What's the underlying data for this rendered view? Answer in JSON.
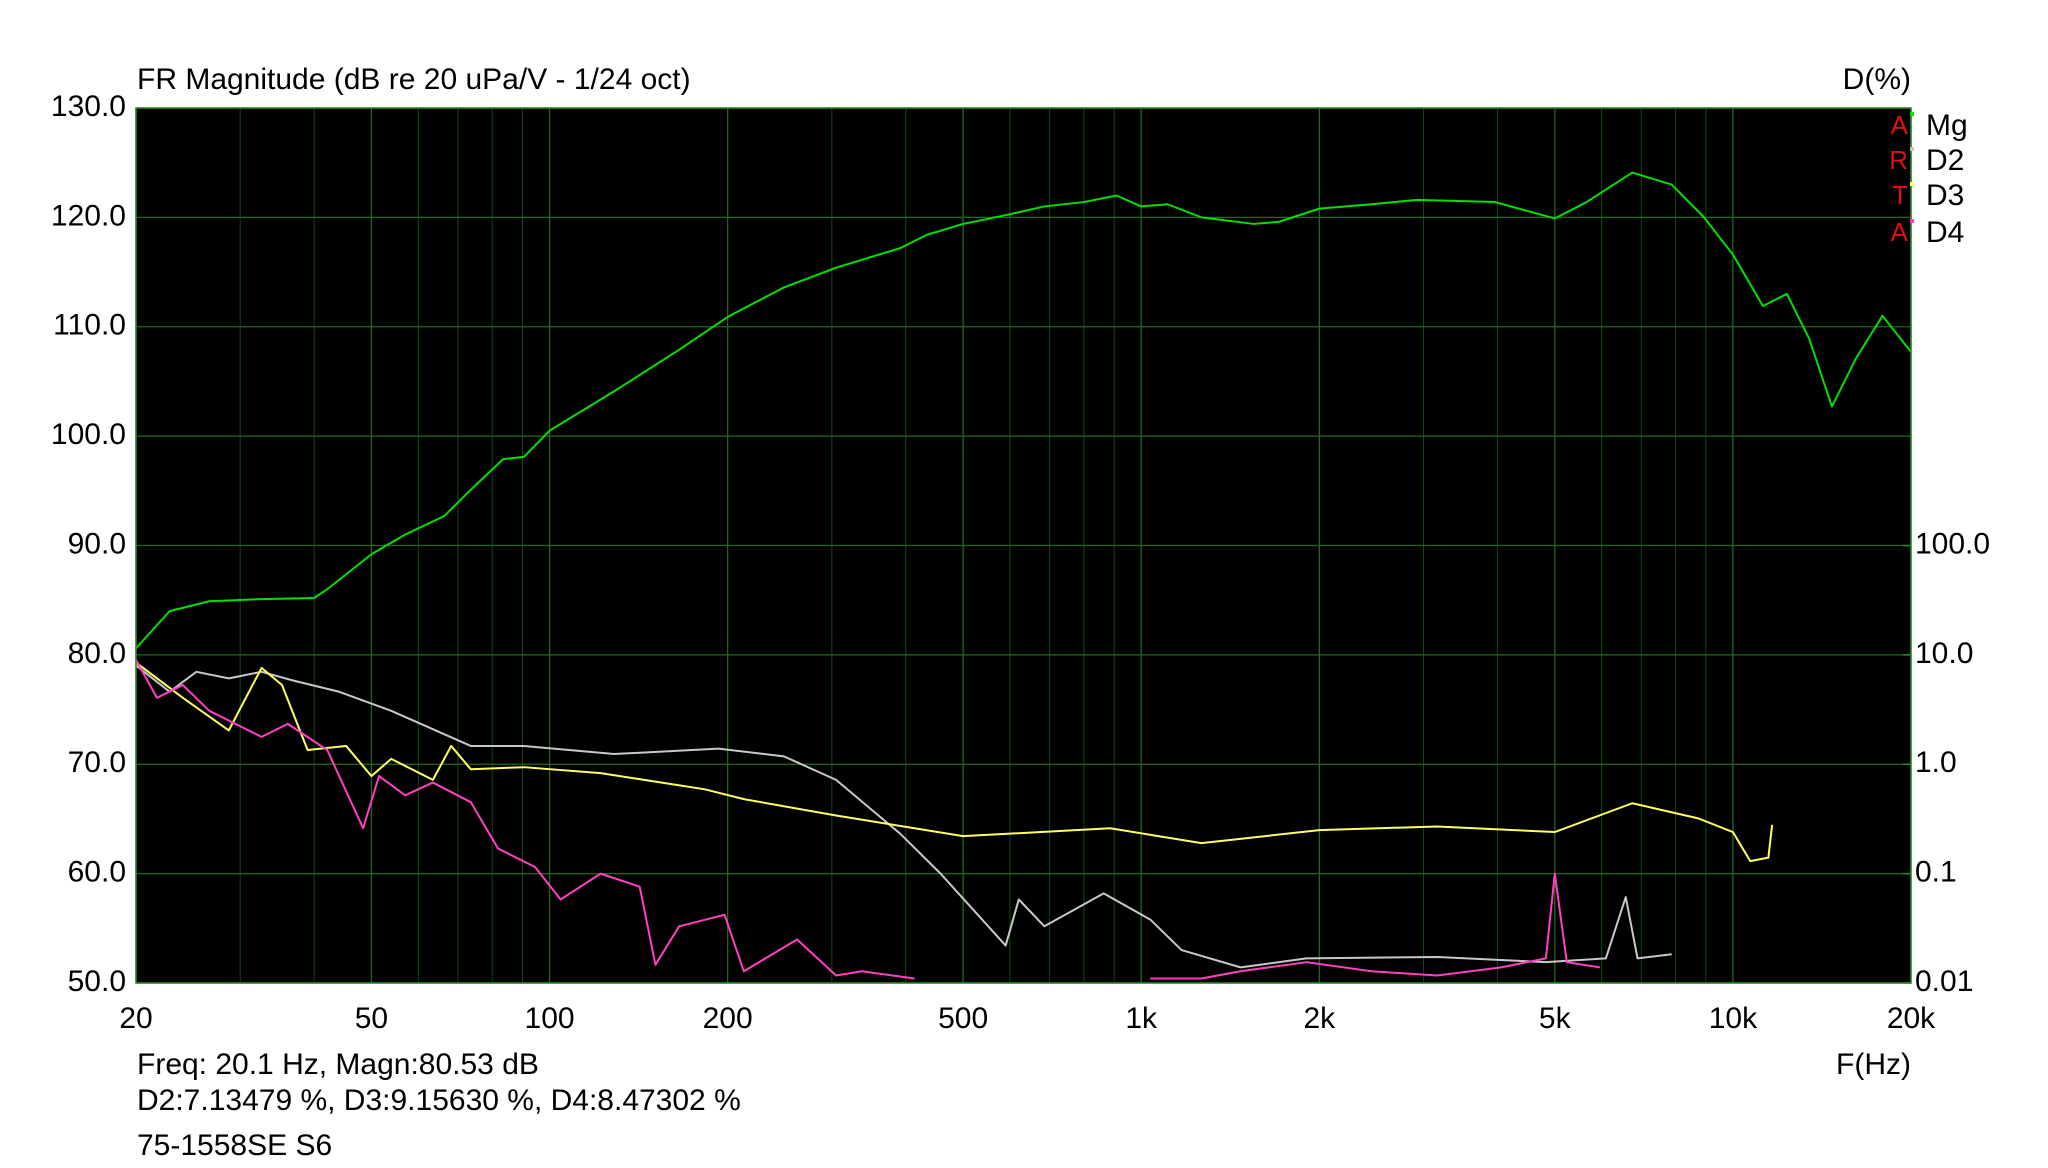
{
  "chart_data": {
    "type": "line",
    "title": "FR Magnitude (dB re 20 uPa/V - 1/24 oct)",
    "y2_label": "D(%)",
    "x_label": "F(Hz)",
    "logo": [
      "A",
      "R",
      "T",
      "A"
    ],
    "footer": [
      "Freq: 20.1 Hz, Magn:80.53 dB",
      "D2:7.13479 %, D3:9.15630 %, D4:8.47302 %",
      "75-1558SE S6"
    ],
    "xscale": "log",
    "y2scale": "log",
    "grid": true,
    "xlim": [
      20,
      20000
    ],
    "xticks": [
      20,
      50,
      100,
      200,
      500,
      {
        "value": 1000,
        "label": "1k"
      },
      {
        "value": 2000,
        "label": "2k"
      },
      {
        "value": 5000,
        "label": "5k"
      },
      {
        "value": 10000,
        "label": "10k"
      },
      {
        "value": 20000,
        "label": "20k"
      }
    ],
    "x_minor_grid": [
      30,
      40,
      60,
      70,
      80,
      90,
      300,
      400,
      600,
      700,
      800,
      900,
      3000,
      4000,
      6000,
      7000,
      8000,
      9000
    ],
    "ylim": [
      50,
      130
    ],
    "yticks": [
      {
        "value": 50,
        "label": "50.0"
      },
      {
        "value": 60,
        "label": "60.0"
      },
      {
        "value": 70,
        "label": "70.0"
      },
      {
        "value": 80,
        "label": "80.0"
      },
      {
        "value": 90,
        "label": "90.0"
      },
      {
        "value": 100,
        "label": "100.0"
      },
      {
        "value": 110,
        "label": "110.0"
      },
      {
        "value": 120,
        "label": "120.0"
      },
      {
        "value": 130,
        "label": "130.0"
      }
    ],
    "y2lim": [
      0.01,
      1000000
    ],
    "y2ticks": [
      0.01,
      0.1,
      {
        "value": 1,
        "label": "1.0"
      },
      {
        "value": 10,
        "label": "10.0"
      },
      {
        "value": 100,
        "label": "100.0"
      }
    ],
    "series": [
      {
        "name": "Mg",
        "color": "#00e000",
        "x": [
          20,
          22.8,
          26.6,
          32.6,
          40,
          42.1,
          50,
          57,
          66.4,
          73.6,
          83.5,
          90.5,
          100,
          128.6,
          165.6,
          200,
          249,
          305,
          392,
          434,
          500,
          590,
          686,
          800,
          908,
          1000,
          1108,
          1264,
          1550,
          1710,
          2000,
          2452,
          2926,
          3960,
          5000,
          5660,
          6760,
          7880,
          8940,
          10000,
          11240,
          12340,
          13460,
          14700,
          16140,
          17900,
          20000
        ],
        "values": [
          80.6,
          84.0,
          84.9,
          85.1,
          85.2,
          86.0,
          89.2,
          91.0,
          92.7,
          95.1,
          97.9,
          98.1,
          100.5,
          104.1,
          107.9,
          110.9,
          113.6,
          115.4,
          117.2,
          118.4,
          119.4,
          120.2,
          121.0,
          121.4,
          122.0,
          121.0,
          121.2,
          120.0,
          119.4,
          119.6,
          120.8,
          121.2,
          121.6,
          121.4,
          119.9,
          121.4,
          124.1,
          123.0,
          120.0,
          116.6,
          111.9,
          113.0,
          108.9,
          102.7,
          107.1,
          111.0,
          107.7
        ]
      },
      {
        "name": "D2",
        "color": "#c8c8c8",
        "axis": "y2",
        "x": [
          20,
          22.8,
          25.3,
          28.7,
          32.6,
          37,
          44.1,
          54,
          73.6,
          90.5,
          128.6,
          193,
          249,
          305,
          392,
          458,
          590,
          621,
          686,
          864,
          1036,
          1170,
          1472,
          1902,
          3164,
          4830,
          6100,
          6590,
          6900,
          7880
        ],
        "values": [
          8.0,
          4.6,
          7.0,
          6.1,
          7.0,
          5.8,
          4.6,
          3.08,
          1.47,
          1.47,
          1.24,
          1.39,
          1.18,
          0.72,
          0.23,
          0.1,
          0.022,
          0.058,
          0.033,
          0.066,
          0.038,
          0.02,
          0.0139,
          0.0168,
          0.0173,
          0.0155,
          0.0168,
          0.061,
          0.0168,
          0.0183
        ]
      },
      {
        "name": "D3",
        "color": "#ffff60",
        "axis": "y2",
        "x": [
          20,
          24,
          28.7,
          32.6,
          35.3,
          39,
          45.3,
          50,
          54,
          63.5,
          68.2,
          73.6,
          90.5,
          122,
          183,
          213,
          305,
          500,
          886,
          1264,
          2000,
          3164,
          5000,
          6760,
          8740,
          10000,
          10700,
          11480,
          11650
        ],
        "values": [
          8.5,
          4.05,
          2.04,
          7.6,
          5.3,
          1.35,
          1.47,
          0.78,
          1.12,
          0.72,
          1.47,
          0.9,
          0.94,
          0.83,
          0.59,
          0.48,
          0.34,
          0.22,
          0.26,
          0.19,
          0.25,
          0.27,
          0.24,
          0.44,
          0.32,
          0.24,
          0.13,
          0.14,
          0.28
        ]
      },
      {
        "name": "D4",
        "color": "#ff40c0",
        "axis": "y2",
        "x": [
          20,
          21.7,
          24,
          26.6,
          32.6,
          36.1,
          42.1,
          48.4,
          51.5,
          57,
          63.5,
          73.6,
          81.8,
          94.5,
          104.4,
          122,
          142,
          151,
          165.6,
          197.6,
          213,
          262,
          305,
          337,
          414,
          600,
          1036,
          1264,
          1472,
          1902,
          2452,
          3164,
          4060,
          4830,
          5000,
          5240,
          5960
        ],
        "values": [
          9.0,
          4.05,
          5.3,
          3.08,
          1.78,
          2.34,
          1.35,
          0.26,
          0.78,
          0.52,
          0.68,
          0.45,
          0.17,
          0.115,
          0.058,
          0.1,
          0.076,
          0.0147,
          0.033,
          0.042,
          0.0128,
          0.025,
          0.0117,
          0.0128,
          0.011,
          null,
          0.011,
          0.011,
          0.0128,
          0.0155,
          0.0128,
          0.0117,
          0.0139,
          0.0168,
          0.1,
          0.0155,
          0.0139
        ]
      }
    ]
  }
}
